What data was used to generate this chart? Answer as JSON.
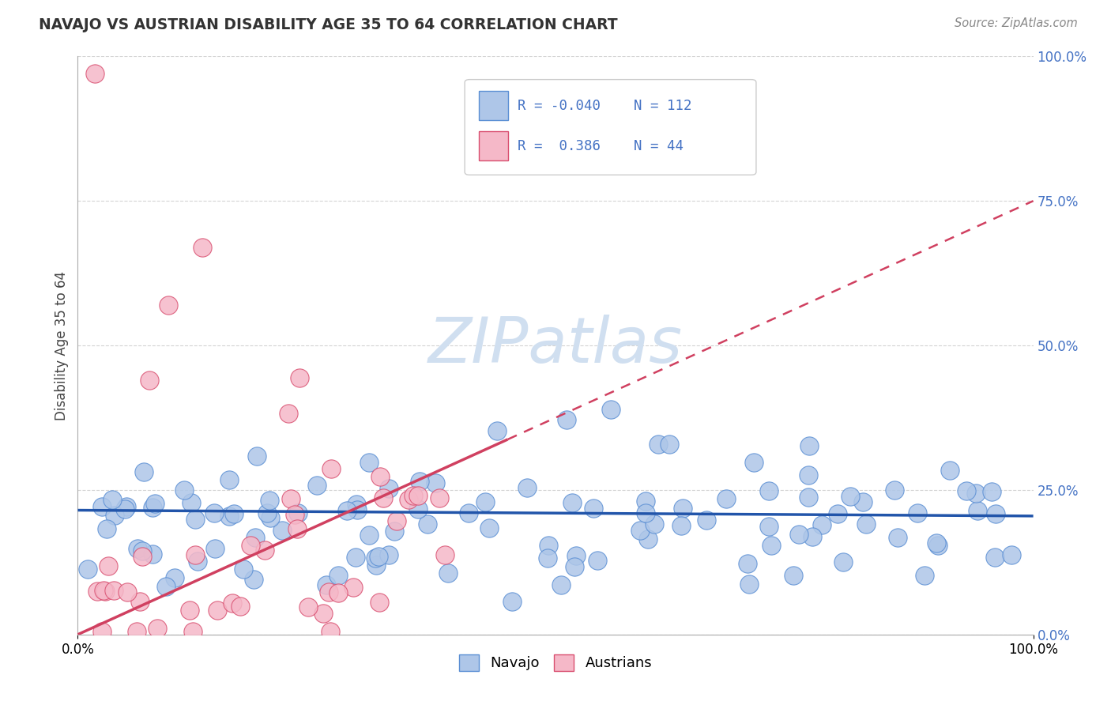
{
  "title": "NAVAJO VS AUSTRIAN DISABILITY AGE 35 TO 64 CORRELATION CHART",
  "source_text": "Source: ZipAtlas.com",
  "ylabel": "Disability Age 35 to 64",
  "yticks": [
    "0.0%",
    "25.0%",
    "50.0%",
    "75.0%",
    "100.0%"
  ],
  "ytick_vals": [
    0.0,
    0.25,
    0.5,
    0.75,
    1.0
  ],
  "navajo_R": -0.04,
  "navajo_N": 112,
  "austrians_R": 0.386,
  "austrians_N": 44,
  "navajo_color": "#aec6e8",
  "navajo_edge_color": "#5b8fd4",
  "austrians_color": "#f5b8c8",
  "austrians_edge_color": "#d94f70",
  "navajo_line_color": "#2255aa",
  "austrians_line_color": "#d04060",
  "watermark_color": "#d0dff0",
  "background_color": "#ffffff",
  "text_color": "#4472c4",
  "grid_color": "#d0d0d0",
  "title_color": "#333333"
}
